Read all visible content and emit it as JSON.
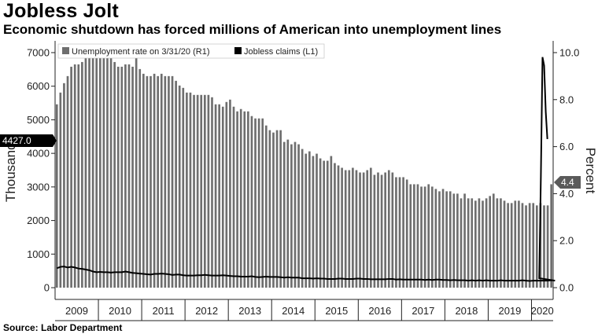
{
  "title": "Jobless Jolt",
  "subtitle": "Economic shutdown has forced millions of American into unemployment lines",
  "source": "Source: Labor Department",
  "chart_data": {
    "type": "bar",
    "xlabel": "",
    "x_ticks": [
      "2009",
      "2010",
      "2011",
      "2012",
      "2013",
      "2014",
      "2015",
      "2016",
      "2017",
      "2018",
      "2019",
      "2020"
    ],
    "left_axis": {
      "label": "Thousands",
      "ticks": [
        "0",
        "1000",
        "2000",
        "3000",
        "4000",
        "5000",
        "6000",
        "7000"
      ],
      "range": [
        -350,
        7350
      ]
    },
    "right_axis": {
      "label": "Percent",
      "ticks": [
        "0.0",
        "2.0",
        "4.0",
        "6.0",
        "8.0",
        "10.0"
      ],
      "range": [
        -0.5,
        10.5
      ]
    },
    "legend": {
      "placement": "top-left",
      "items": [
        "Unemployment rate on 3/31/20 (R1)",
        "Jobless claims (L1)"
      ]
    },
    "flags": {
      "left": "4427.0",
      "right": "4.4"
    },
    "series": [
      {
        "name": "Unemployment rate on 3/31/20 (R1)",
        "axis": "right",
        "start": "2009-01",
        "values": [
          7.8,
          8.3,
          8.7,
          9.0,
          9.4,
          9.5,
          9.5,
          9.6,
          9.8,
          10.0,
          9.9,
          9.9,
          9.8,
          9.8,
          9.9,
          9.9,
          9.6,
          9.4,
          9.4,
          9.5,
          9.5,
          9.4,
          9.8,
          9.3,
          9.1,
          9.0,
          9.0,
          9.1,
          9.0,
          9.1,
          9.0,
          9.0,
          9.0,
          8.8,
          8.6,
          8.5,
          8.3,
          8.3,
          8.2,
          8.2,
          8.2,
          8.2,
          8.2,
          8.1,
          7.8,
          7.8,
          7.7,
          7.9,
          8.0,
          7.7,
          7.5,
          7.6,
          7.5,
          7.5,
          7.3,
          7.2,
          7.2,
          7.2,
          6.9,
          6.7,
          6.6,
          6.7,
          6.7,
          6.2,
          6.3,
          6.1,
          6.2,
          6.1,
          5.9,
          5.7,
          5.8,
          5.6,
          5.7,
          5.5,
          5.4,
          5.4,
          5.6,
          5.3,
          5.2,
          5.1,
          5.0,
          5.0,
          5.1,
          5.0,
          4.9,
          4.9,
          5.0,
          5.1,
          4.8,
          4.9,
          4.8,
          4.9,
          5.0,
          4.9,
          4.7,
          4.7,
          4.7,
          4.6,
          4.4,
          4.4,
          4.4,
          4.3,
          4.3,
          4.4,
          4.3,
          4.2,
          4.1,
          4.2,
          4.1,
          4.1,
          4.0,
          4.0,
          3.8,
          4.0,
          3.8,
          3.8,
          3.7,
          3.8,
          3.7,
          3.8,
          3.9,
          4.0,
          3.8,
          3.8,
          3.7,
          3.6,
          3.6,
          3.7,
          3.7,
          3.6,
          3.5,
          3.6,
          3.6,
          3.5,
          3.6,
          3.5,
          3.5,
          4.4
        ]
      },
      {
        "name": "Jobless claims (L1)",
        "axis": "left",
        "start": "2009-01",
        "values": [
          580,
          620,
          630,
          600,
          620,
          600,
          570,
          560,
          540,
          520,
          480,
          460,
          470,
          460,
          460,
          450,
          460,
          460,
          460,
          480,
          460,
          440,
          430,
          420,
          410,
          400,
          390,
          410,
          410,
          420,
          410,
          400,
          380,
          390,
          390,
          370,
          360,
          360,
          360,
          370,
          370,
          380,
          370,
          360,
          360,
          360,
          370,
          360,
          350,
          340,
          340,
          330,
          330,
          330,
          340,
          320,
          310,
          320,
          330,
          320,
          320,
          320,
          310,
          300,
          310,
          300,
          300,
          300,
          280,
          280,
          280,
          270,
          280,
          270,
          270,
          260,
          260,
          260,
          270,
          270,
          260,
          260,
          260,
          270,
          270,
          260,
          260,
          250,
          250,
          250,
          250,
          250,
          260,
          260,
          240,
          250,
          240,
          240,
          240,
          240,
          240,
          240,
          230,
          240,
          230,
          240,
          240,
          230,
          230,
          220,
          230,
          220,
          220,
          220,
          210,
          220,
          210,
          220,
          210,
          220,
          210,
          210,
          210,
          220,
          210,
          210,
          210,
          210,
          210,
          220,
          210,
          200,
          210,
          210,
          210,
          210,
          210,
          220,
          210
        ],
        "weekly_2020": [
          282,
          3307,
          6867,
          6615,
          5237,
          4427
        ]
      }
    ]
  }
}
